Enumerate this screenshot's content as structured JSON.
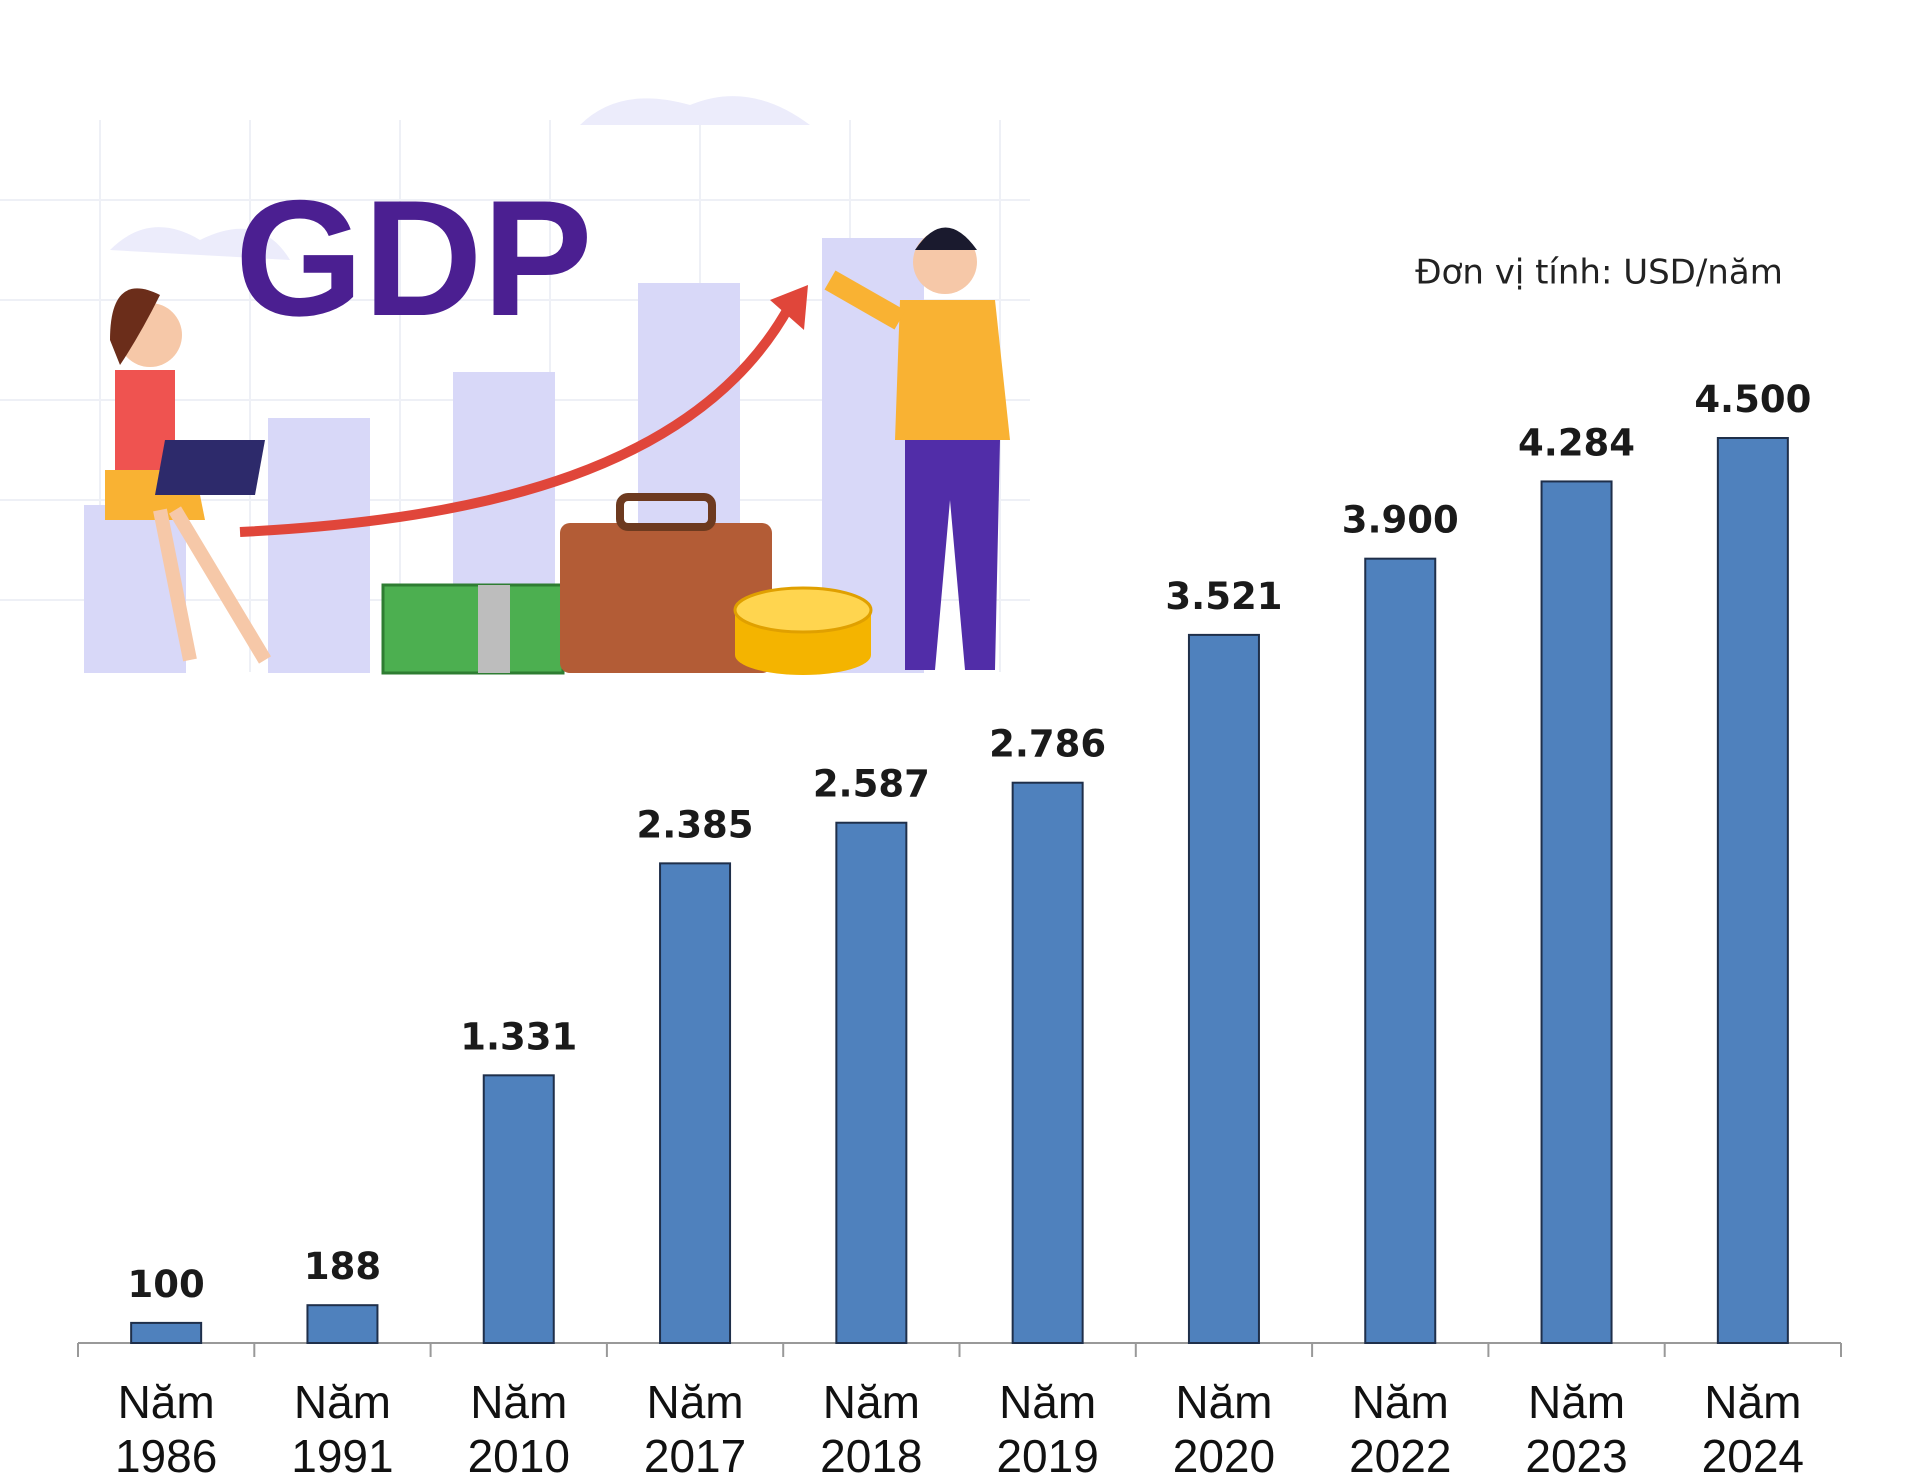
{
  "chart_data": {
    "type": "bar",
    "title": "GDP",
    "subtitle": "Đơn vị tính: USD/năm",
    "categories": [
      "Năm 1986",
      "Năm 1991",
      "Năm 2010",
      "Năm 2017",
      "Năm 2018",
      "Năm 2019",
      "Năm 2020",
      "Năm 2022",
      "Năm 2023",
      "Năm 2024"
    ],
    "values": [
      100,
      188,
      1331,
      2385,
      2587,
      2786,
      3521,
      3900,
      4284,
      4500
    ],
    "value_labels": [
      "100",
      "188",
      "1.331",
      "2.385",
      "2.587",
      "2.786",
      "3.521",
      "3.900",
      "4.284",
      "4.500"
    ],
    "color": "#4f81bd"
  }
}
